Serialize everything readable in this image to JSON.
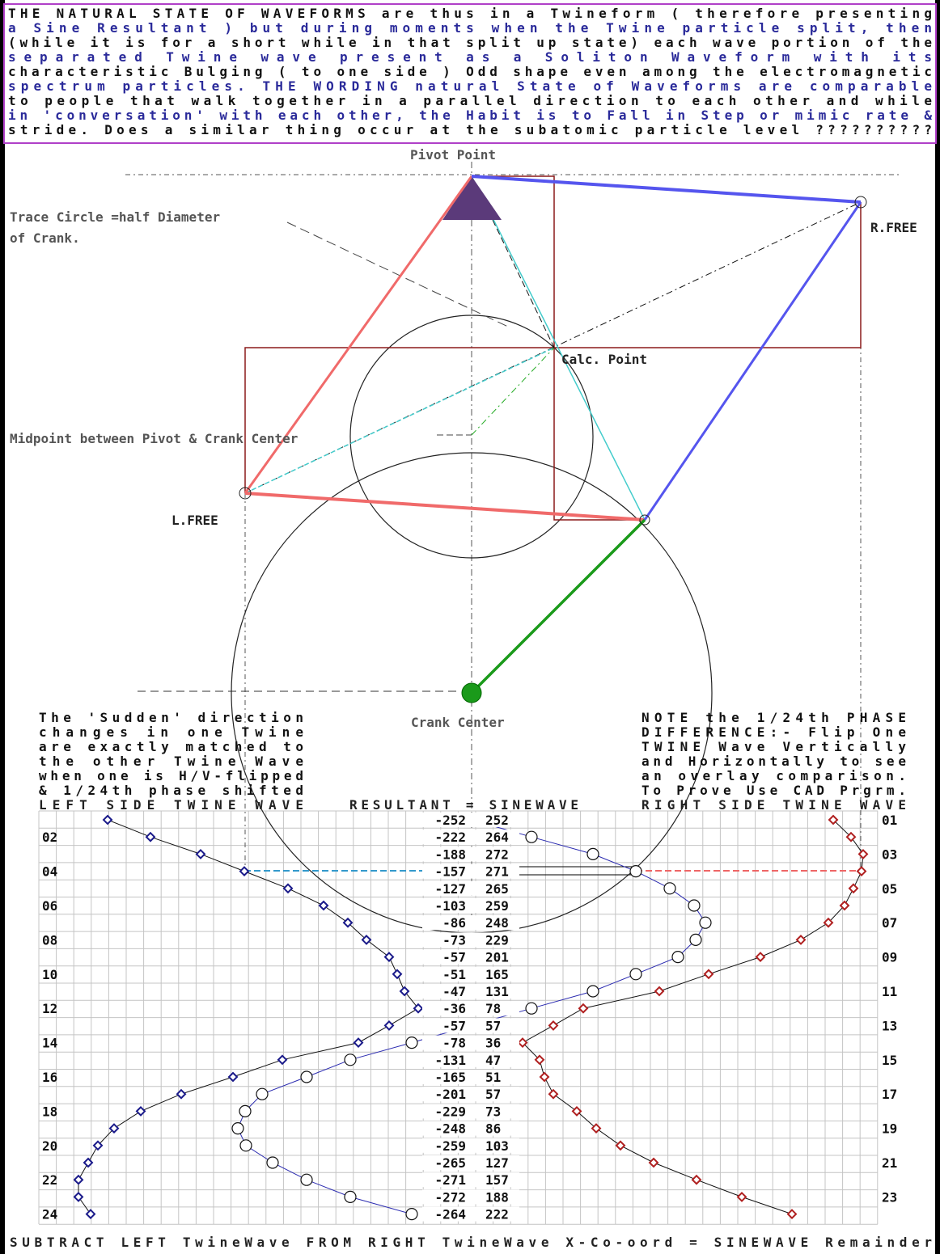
{
  "paragraph": [
    "THE NATURAL STATE OF WAVEFORMS are thus in a Twineform ( therefore presenting",
    "a Sine Resultant ) but during moments when the Twine particle split, then",
    "(while it is for a short while in that split up state) each wave portion of the",
    "separated Twine wave present as a Soliton Waveform with its",
    "characteristic Bulging ( to one side ) Odd shape even among the electromagnetic",
    "spectrum particles. THE WORDING natural State of Waveforms are comparable",
    "to people that walk together in a parallel direction to each other and while",
    "in 'conversation' with each other, the Habit is to Fall in Step or mimic rate &",
    "stride. Does a similar thing occur at the subatomic particle level ??????????"
  ],
  "labels": {
    "pivot_point": "Pivot Point",
    "trace_circle": [
      "Trace Circle =half Diameter",
      "of Crank."
    ],
    "r_free": "R.FREE",
    "calc_point": "Calc. Point",
    "midpoint": "Midpoint between Pivot & Crank Center",
    "l_free": "L.FREE",
    "crank_center": "Crank Center"
  },
  "left_note": [
    "The 'Sudden' direction",
    "changes in one Twine",
    "are exactly matched to",
    "the other Twine Wave",
    "when one is H/V-flipped",
    "& 1/24th phase shifted"
  ],
  "right_note": [
    "NOTE the 1/24th PHASE",
    "DIFFERENCE:- Flip One",
    "TWINE Wave Vertically",
    "and Horizontally to see",
    "an overlay comparison.",
    "To Prove Use CAD Prgrm."
  ],
  "headers": {
    "left": "LEFT SIDE TWINE WAVE",
    "resultant": "RESULTANT = SINEWAVE",
    "right": "RIGHT SIDE TWINE WAVE"
  },
  "table": {
    "rows": [
      {
        "label": "01",
        "left": -252,
        "right": 252
      },
      {
        "label": "02",
        "left": -222,
        "right": 264
      },
      {
        "label": "03",
        "left": -188,
        "right": 272
      },
      {
        "label": "04",
        "left": -157,
        "right": 271
      },
      {
        "label": "05",
        "left": -127,
        "right": 265
      },
      {
        "label": "06",
        "left": -103,
        "right": 259
      },
      {
        "label": "07",
        "left": -86,
        "right": 248
      },
      {
        "label": "08",
        "left": -73,
        "right": 229
      },
      {
        "label": "09",
        "left": -57,
        "right": 201
      },
      {
        "label": "10",
        "left": -51,
        "right": 165
      },
      {
        "label": "11",
        "left": -47,
        "right": 131
      },
      {
        "label": "12",
        "left": -36,
        "right": 78
      },
      {
        "label": "13",
        "left": -57,
        "right": 57
      },
      {
        "label": "14",
        "left": -78,
        "right": 36
      },
      {
        "label": "15",
        "left": -131,
        "right": 47
      },
      {
        "label": "16",
        "left": -165,
        "right": 51
      },
      {
        "label": "17",
        "left": -201,
        "right": 57
      },
      {
        "label": "18",
        "left": -229,
        "right": 73
      },
      {
        "label": "19",
        "left": -248,
        "right": 86
      },
      {
        "label": "20",
        "left": -259,
        "right": 103
      },
      {
        "label": "21",
        "left": -265,
        "right": 127
      },
      {
        "label": "22",
        "left": -271,
        "right": 157
      },
      {
        "label": "23",
        "left": -272,
        "right": 188
      },
      {
        "label": "24",
        "left": -264,
        "right": 222
      }
    ]
  },
  "footer": "SUBTRACT LEFT TwineWave FROM RIGHT TwineWave X-Co-oord = SINEWAVE Remainder"
}
